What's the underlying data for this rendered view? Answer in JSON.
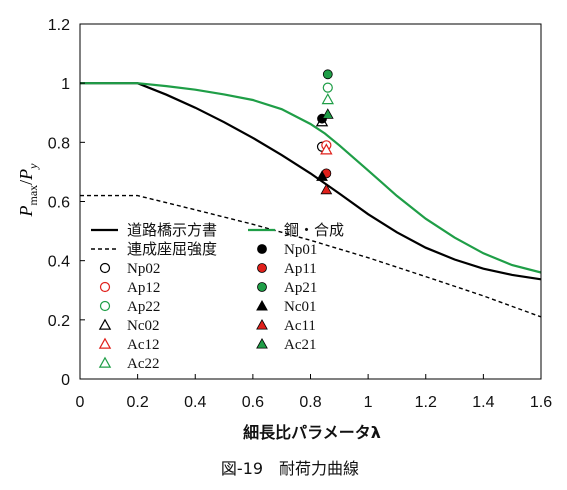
{
  "chart_data": {
    "type": "line",
    "xlabel": "細長比パラメータλ",
    "ylabel": {
      "main": "P",
      "sub1": "max",
      "sep": "/",
      "main2": "P",
      "sub2": "y"
    },
    "xlim": [
      0,
      1.6
    ],
    "ylim": [
      0,
      1.2
    ],
    "x_ticks": [
      "0",
      "0.2",
      "0.4",
      "0.6",
      "0.8",
      "1",
      "1.2",
      "1.4",
      "1.6"
    ],
    "y_ticks": [
      "0",
      "0.2",
      "0.4",
      "0.6",
      "0.8",
      "1",
      "1.2"
    ],
    "caption": "図-19　耐荷力曲線",
    "grid": false,
    "colors": {
      "black": "#000000",
      "red": "#e0201b",
      "green": "#1f9e47",
      "dashed": "#000000"
    },
    "curves": [
      {
        "name": "道路橋示方書",
        "style": "solid",
        "color": "#000000",
        "points": [
          [
            0,
            1.0
          ],
          [
            0.2,
            1.0
          ],
          [
            0.3,
            0.961
          ],
          [
            0.4,
            0.917
          ],
          [
            0.5,
            0.868
          ],
          [
            0.6,
            0.815
          ],
          [
            0.7,
            0.757
          ],
          [
            0.8,
            0.695
          ],
          [
            0.9,
            0.627
          ],
          [
            1.0,
            0.557
          ],
          [
            1.1,
            0.496
          ],
          [
            1.2,
            0.444
          ],
          [
            1.3,
            0.404
          ],
          [
            1.4,
            0.373
          ],
          [
            1.5,
            0.352
          ],
          [
            1.6,
            0.337
          ]
        ]
      },
      {
        "name": "鋼・合成",
        "style": "solid",
        "color": "#1f9e47",
        "points": [
          [
            0,
            1.0
          ],
          [
            0.2,
            1.0
          ],
          [
            0.3,
            0.99
          ],
          [
            0.4,
            0.978
          ],
          [
            0.5,
            0.962
          ],
          [
            0.6,
            0.943
          ],
          [
            0.7,
            0.912
          ],
          [
            0.8,
            0.862
          ],
          [
            0.85,
            0.83
          ],
          [
            0.9,
            0.79
          ],
          [
            1.0,
            0.705
          ],
          [
            1.1,
            0.619
          ],
          [
            1.2,
            0.542
          ],
          [
            1.3,
            0.478
          ],
          [
            1.4,
            0.425
          ],
          [
            1.5,
            0.385
          ],
          [
            1.6,
            0.36
          ]
        ]
      },
      {
        "name": "連成座屈強度",
        "style": "dashed",
        "color": "#000000",
        "points": [
          [
            0,
            0.62
          ],
          [
            0.2,
            0.62
          ],
          [
            0.4,
            0.572
          ],
          [
            0.6,
            0.523
          ],
          [
            0.8,
            0.469
          ],
          [
            1.0,
            0.41
          ],
          [
            1.2,
            0.346
          ],
          [
            1.4,
            0.281
          ],
          [
            1.6,
            0.21
          ]
        ]
      }
    ],
    "points": [
      {
        "name": "Np02",
        "marker": "circle",
        "filled": false,
        "color": "#000000",
        "x": 0.84,
        "y": 0.785
      },
      {
        "name": "Ap12",
        "marker": "circle",
        "filled": false,
        "color": "#e0201b",
        "x": 0.855,
        "y": 0.79
      },
      {
        "name": "Ap22",
        "marker": "circle",
        "filled": false,
        "color": "#1f9e47",
        "x": 0.86,
        "y": 0.985
      },
      {
        "name": "Nc02",
        "marker": "triangle",
        "filled": false,
        "color": "#000000",
        "x": 0.84,
        "y": 0.87
      },
      {
        "name": "Ac12",
        "marker": "triangle",
        "filled": false,
        "color": "#e0201b",
        "x": 0.855,
        "y": 0.775
      },
      {
        "name": "Ac22",
        "marker": "triangle",
        "filled": false,
        "color": "#1f9e47",
        "x": 0.86,
        "y": 0.945
      },
      {
        "name": "Np01",
        "marker": "circle",
        "filled": true,
        "color": "#000000",
        "x": 0.84,
        "y": 0.88
      },
      {
        "name": "Ap11",
        "marker": "circle",
        "filled": true,
        "color": "#e0201b",
        "x": 0.855,
        "y": 0.695
      },
      {
        "name": "Ap21",
        "marker": "circle",
        "filled": true,
        "color": "#1f9e47",
        "x": 0.86,
        "y": 1.03
      },
      {
        "name": "Nc01",
        "marker": "triangle",
        "filled": true,
        "color": "#000000",
        "x": 0.84,
        "y": 0.685
      },
      {
        "name": "Ac11",
        "marker": "triangle",
        "filled": true,
        "color": "#e0201b",
        "x": 0.855,
        "y": 0.64
      },
      {
        "name": "Ac21",
        "marker": "triangle",
        "filled": true,
        "color": "#1f9e47",
        "x": 0.86,
        "y": 0.895
      }
    ],
    "legend": {
      "placement": "lower-left",
      "col1": [
        "道路橋示方書",
        "連成座屈強度",
        "Np02",
        "Ap12",
        "Ap22",
        "Nc02",
        "Ac12",
        "Ac22"
      ],
      "col2": [
        "鋼・合成",
        "Np01",
        "Ap11",
        "Ap21",
        "Nc01",
        "Ac11",
        "Ac21"
      ]
    }
  }
}
